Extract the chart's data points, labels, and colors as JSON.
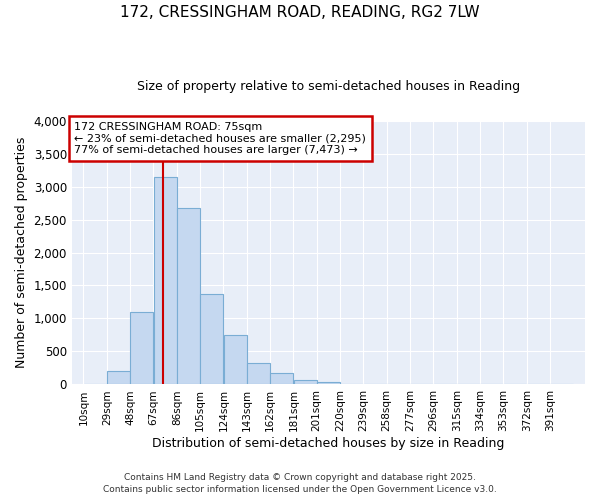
{
  "title1": "172, CRESSINGHAM ROAD, READING, RG2 7LW",
  "title2": "Size of property relative to semi-detached houses in Reading",
  "xlabel": "Distribution of semi-detached houses by size in Reading",
  "ylabel": "Number of semi-detached properties",
  "bin_labels": [
    "10sqm",
    "29sqm",
    "48sqm",
    "67sqm",
    "86sqm",
    "105sqm",
    "124sqm",
    "143sqm",
    "162sqm",
    "181sqm",
    "201sqm",
    "220sqm",
    "239sqm",
    "258sqm",
    "277sqm",
    "296sqm",
    "315sqm",
    "334sqm",
    "353sqm",
    "372sqm",
    "391sqm"
  ],
  "bar_values": [
    0,
    200,
    1100,
    3150,
    2680,
    1370,
    750,
    320,
    180,
    75,
    40,
    8,
    0,
    0,
    0,
    0,
    0,
    0,
    0,
    0,
    0
  ],
  "bar_color": "#c5d8f0",
  "bar_edge_color": "#7aadd4",
  "vline_color": "#cc0000",
  "annotation_title": "172 CRESSINGHAM ROAD: 75sqm",
  "annotation_line1": "← 23% of semi-detached houses are smaller (2,295)",
  "annotation_line2": "77% of semi-detached houses are larger (7,473) →",
  "annotation_box_facecolor": "#ffffff",
  "annotation_box_edgecolor": "#cc0000",
  "ylim": [
    0,
    4000
  ],
  "yticks": [
    0,
    500,
    1000,
    1500,
    2000,
    2500,
    3000,
    3500,
    4000
  ],
  "bg_color": "#ffffff",
  "plot_bg_color": "#e8eef8",
  "grid_color": "#ffffff",
  "footer1": "Contains HM Land Registry data © Crown copyright and database right 2025.",
  "footer2": "Contains public sector information licensed under the Open Government Licence v3.0."
}
